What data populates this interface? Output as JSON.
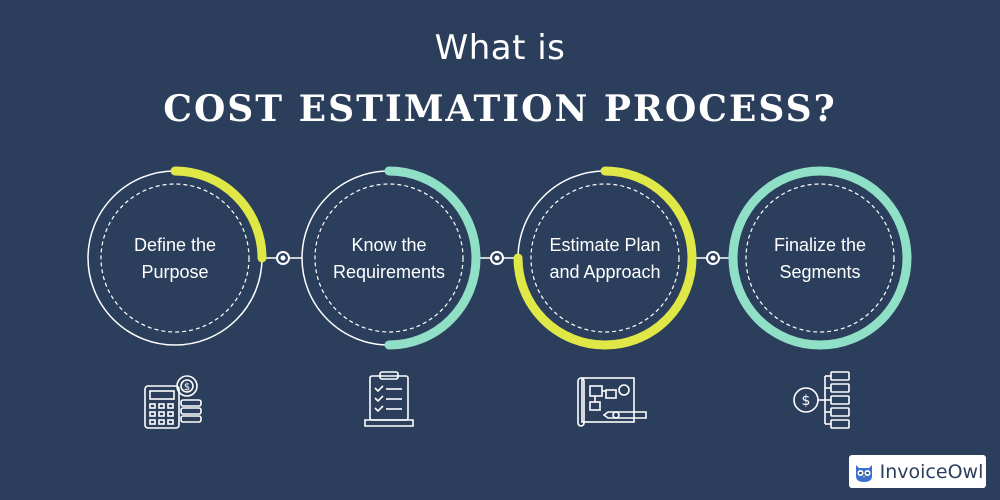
{
  "title": {
    "line1": "What is",
    "line2": "COST ESTIMATION PROCESS?"
  },
  "steps": [
    {
      "line1": "Define the",
      "line2": "Purpose",
      "icon": "calculator-dollar-gear-icon"
    },
    {
      "line1": "Know the",
      "line2": "Requirements",
      "icon": "clipboard-checklist-laptop-icon"
    },
    {
      "line1": "Estimate Plan",
      "line2": "and Approach",
      "icon": "blueprint-pencil-icon"
    },
    {
      "line1": "Finalize the",
      "line2": "Segments",
      "icon": "dollar-flowchart-icon"
    }
  ],
  "brand": {
    "name": "InvoiceOwl",
    "icon": "owl-icon"
  },
  "colors": {
    "background": "#2b3f5c",
    "yellow": "#e0e847",
    "mint": "#8fe0c6",
    "white": "#ffffff"
  }
}
